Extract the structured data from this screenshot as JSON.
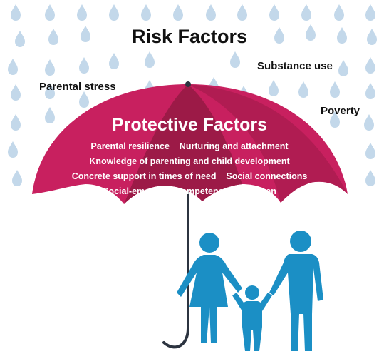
{
  "heading": "Risk Factors",
  "risk_factors": [
    {
      "label": "Parental stress"
    },
    {
      "label": "Substance use"
    },
    {
      "label": "Poverty"
    }
  ],
  "umbrella": {
    "title": "Protective Factors",
    "lines": [
      "Parental resilience    Nurturing and attachment",
      "Knowledge of parenting and child development",
      "Concrete support in times of need    Social connections",
      "Social-emotional competence of children"
    ]
  },
  "colors": {
    "rain": "#c3d8ea",
    "umbrella_main": "#c8205f",
    "umbrella_dark": "#9c1a47",
    "family": "#1b8fc5",
    "handle": "#2c3440"
  },
  "icons": {
    "rain": "raindrop-icon",
    "family": "family-icon",
    "umbrella": "umbrella-icon"
  }
}
